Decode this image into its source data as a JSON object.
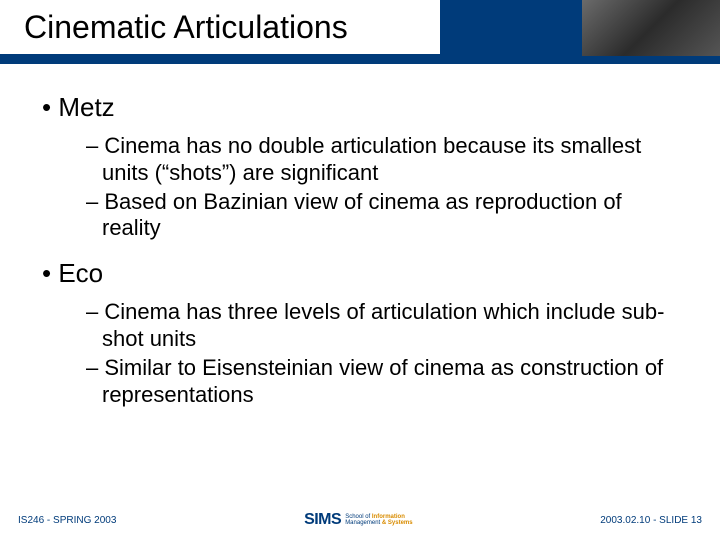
{
  "title": "Cinematic Articulations",
  "sections": [
    {
      "heading": "Metz",
      "items": [
        "Cinema has no double articulation because its smallest units (“shots”) are significant",
        "Based on Bazinian view of cinema as reproduction of reality"
      ]
    },
    {
      "heading": "Eco",
      "items": [
        "Cinema has three levels of articulation which include sub-shot units",
        "Similar to Eisensteinian view of cinema as construction of representations"
      ]
    }
  ],
  "footer": {
    "left": "IS246 - SPRING 2003",
    "right": "2003.02.10 - SLIDE 13",
    "logo_main": "SIMS",
    "logo_line1a": "School of ",
    "logo_line1b": "Information",
    "logo_line2a": "Management ",
    "logo_line2b": "& Systems"
  },
  "colors": {
    "brand_blue": "#003b7a",
    "accent_orange": "#d98c00",
    "text": "#000000",
    "background": "#ffffff"
  }
}
